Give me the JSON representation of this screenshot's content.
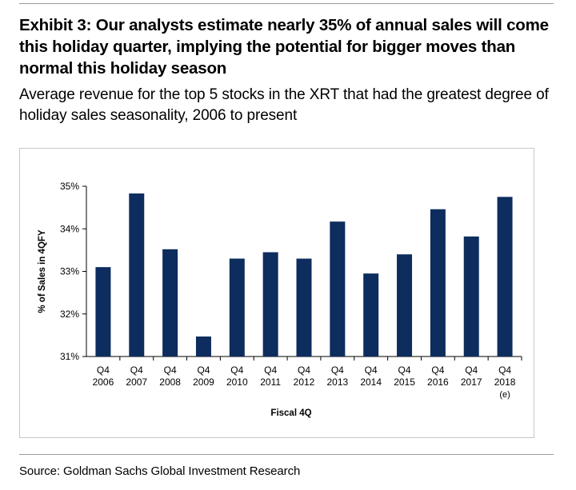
{
  "exhibit": {
    "title": "Exhibit 3: Our analysts estimate nearly 35% of annual sales will come this holiday quarter, implying the potential for bigger moves than normal this holiday season",
    "subtitle": "Average revenue for the top 5 stocks in the XRT that had the greatest degree of holiday sales seasonality, 2006 to present",
    "source": "Source: Goldman Sachs Global Investment Research"
  },
  "colors": {
    "bar": "#0d2d5e",
    "axis": "#000000",
    "frame": "#c8c8c8"
  },
  "chart_data": {
    "type": "bar",
    "categories": [
      [
        "Q4",
        "2006"
      ],
      [
        "Q4",
        "2007"
      ],
      [
        "Q4",
        "2008"
      ],
      [
        "Q4",
        "2009"
      ],
      [
        "Q4",
        "2010"
      ],
      [
        "Q4",
        "2011"
      ],
      [
        "Q4",
        "2012"
      ],
      [
        "Q4",
        "2013"
      ],
      [
        "Q4",
        "2014"
      ],
      [
        "Q4",
        "2015"
      ],
      [
        "Q4",
        "2016"
      ],
      [
        "Q4",
        "2017"
      ],
      [
        "Q4",
        "2018",
        "(e)"
      ]
    ],
    "values": [
      33.1,
      34.83,
      33.52,
      31.47,
      33.3,
      33.45,
      33.3,
      34.17,
      32.95,
      33.4,
      34.46,
      33.82,
      34.75
    ],
    "xlabel": "Fiscal 4Q",
    "ylabel": "% of Sales in 4QFY",
    "ylim": [
      31,
      35
    ],
    "yticks": [
      "31%",
      "32%",
      "33%",
      "34%",
      "35%"
    ],
    "ytick_values": [
      31,
      32,
      33,
      34,
      35
    ],
    "grid": false,
    "legend": "none"
  }
}
